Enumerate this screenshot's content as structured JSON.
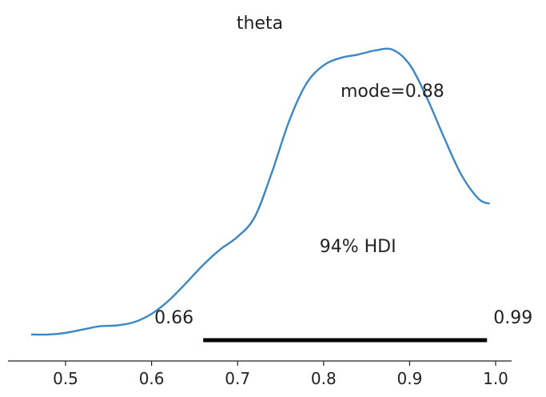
{
  "chart_data": {
    "type": "line",
    "title": "theta",
    "xlabel": "",
    "ylabel": "",
    "xlim": [
      0.44,
      1.02
    ],
    "ylim": [
      0,
      3.55
    ],
    "grid": false,
    "x_ticks": [
      {
        "value": 0.5,
        "label": "0.5"
      },
      {
        "value": 0.6,
        "label": "0.6"
      },
      {
        "value": 0.7,
        "label": "0.7"
      },
      {
        "value": 0.8,
        "label": "0.8"
      },
      {
        "value": 0.9,
        "label": "0.9"
      },
      {
        "value": 1.0,
        "label": "1.0"
      }
    ],
    "series": [
      {
        "color": "#3b86c4",
        "x": [
          0.46,
          0.48,
          0.5,
          0.52,
          0.54,
          0.56,
          0.58,
          0.6,
          0.62,
          0.64,
          0.66,
          0.68,
          0.7,
          0.72,
          0.74,
          0.76,
          0.78,
          0.8,
          0.82,
          0.84,
          0.86,
          0.88,
          0.9,
          0.92,
          0.94,
          0.96,
          0.98,
          0.993
        ],
        "y": [
          0.02,
          0.02,
          0.04,
          0.08,
          0.12,
          0.13,
          0.17,
          0.27,
          0.43,
          0.64,
          0.86,
          1.05,
          1.2,
          1.44,
          1.98,
          2.6,
          3.05,
          3.27,
          3.36,
          3.4,
          3.45,
          3.46,
          3.28,
          2.88,
          2.4,
          1.95,
          1.66,
          1.6
        ]
      }
    ],
    "hdi": {
      "low": 0.66,
      "high": 0.99,
      "low_label": "0.66",
      "high_label": "0.99",
      "label": "94% HDI",
      "color": "#000000"
    },
    "mode": {
      "value": 0.88,
      "label": "mode=0.88"
    }
  }
}
